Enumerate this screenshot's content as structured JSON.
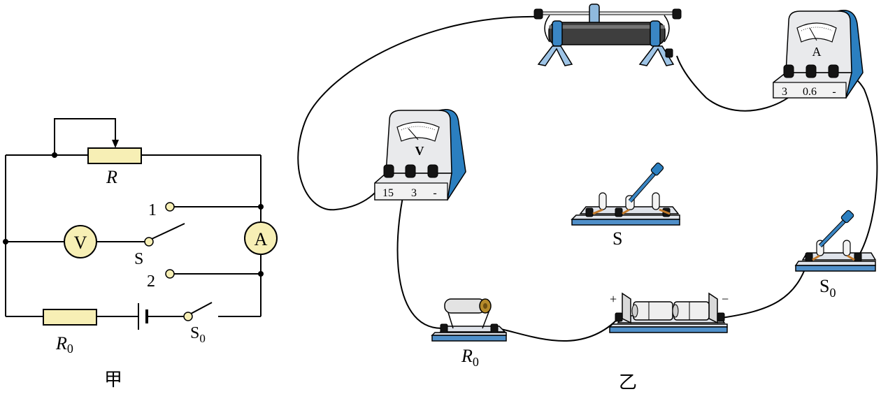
{
  "diagram_jia": {
    "caption": "甲",
    "resistor_label": "R",
    "voltmeter_symbol": "V",
    "ammeter_symbol": "A",
    "switch_label": "S",
    "contact_1": "1",
    "contact_2": "2",
    "fixed_resistor_label": "R",
    "fixed_resistor_sub": "0",
    "main_switch_label": "S",
    "main_switch_sub": "0"
  },
  "diagram_yi": {
    "caption": "乙",
    "voltmeter": {
      "symbol": "V",
      "terminals": [
        "15",
        "3",
        "-"
      ]
    },
    "ammeter": {
      "symbol": "A",
      "terminals": [
        "3",
        "0.6",
        "-"
      ]
    },
    "switch_label": "S",
    "main_switch_label": "S",
    "main_switch_sub": "0",
    "resistor_label": "R",
    "resistor_sub": "0",
    "battery_plus": "+",
    "battery_minus": "−"
  }
}
